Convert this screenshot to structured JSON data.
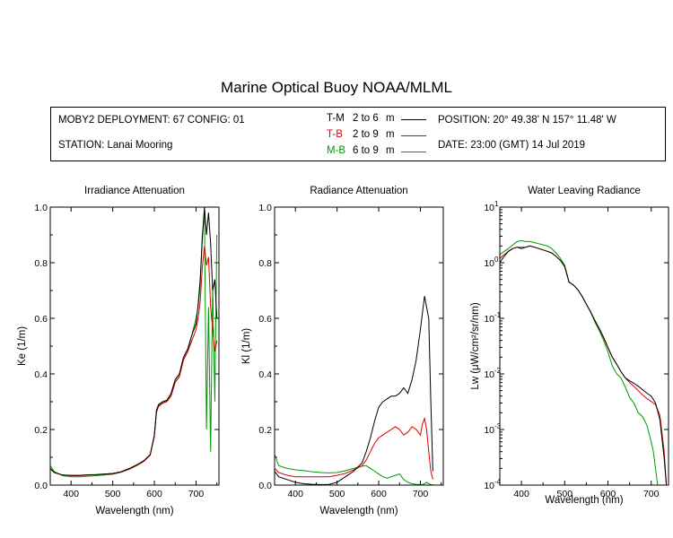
{
  "title": "Marine Optical Buoy NOAA/MLML",
  "info": {
    "deployment": "MOBY2 DEPLOYMENT: 67 CONFIG: 01",
    "station": "STATION: Lanai Mooring",
    "position": "POSITION: 20° 49.38' N   157° 11.48' W",
    "date": "DATE: 23:00 (GMT) 14 Jul 2019",
    "legend": [
      {
        "code": "T-M",
        "range": "2 to 6",
        "unit": "m",
        "color": "#000000"
      },
      {
        "code": "T-B",
        "range": "2 to 9",
        "unit": "m",
        "color": "#e00000"
      },
      {
        "code": "M-B",
        "range": "6 to 9",
        "unit": "m",
        "color": "#009a00"
      }
    ]
  },
  "colors": {
    "tm": "#000000",
    "tb": "#e00000",
    "mb": "#009a00"
  },
  "chart_data": [
    {
      "type": "line",
      "title": "Irradiance Attenuation",
      "xlabel": "Wavelength (nm)",
      "ylabel": "Ke  (1/m)",
      "xlim": [
        350,
        755
      ],
      "ylim": [
        0,
        1.0
      ],
      "xticks": [
        400,
        500,
        600,
        700
      ],
      "yticks": [
        "0.0",
        "0.2",
        "0.4",
        "0.6",
        "0.8",
        "1.0"
      ],
      "series": [
        {
          "key": "tm",
          "x": [
            350,
            360,
            380,
            400,
            420,
            440,
            460,
            480,
            500,
            520,
            540,
            560,
            575,
            590,
            600,
            605,
            610,
            620,
            630,
            640,
            650,
            660,
            670,
            680,
            690,
            700,
            705,
            710,
            715,
            720,
            725,
            730,
            735,
            740,
            745,
            750
          ],
          "y": [
            0.06,
            0.045,
            0.036,
            0.035,
            0.035,
            0.037,
            0.038,
            0.04,
            0.042,
            0.048,
            0.06,
            0.075,
            0.088,
            0.11,
            0.18,
            0.27,
            0.29,
            0.3,
            0.305,
            0.33,
            0.38,
            0.4,
            0.46,
            0.49,
            0.54,
            0.58,
            0.65,
            0.74,
            0.88,
            1.0,
            0.9,
            0.98,
            0.87,
            0.7,
            0.74,
            0.6
          ]
        },
        {
          "key": "tb",
          "x": [
            350,
            360,
            380,
            400,
            420,
            440,
            460,
            480,
            500,
            520,
            540,
            560,
            575,
            590,
            600,
            605,
            610,
            620,
            630,
            640,
            650,
            660,
            670,
            680,
            690,
            700,
            705,
            710,
            715,
            720,
            725,
            730,
            735,
            740,
            745,
            750
          ],
          "y": [
            0.058,
            0.045,
            0.036,
            0.034,
            0.034,
            0.036,
            0.037,
            0.039,
            0.041,
            0.047,
            0.058,
            0.073,
            0.086,
            0.108,
            0.175,
            0.262,
            0.283,
            0.295,
            0.3,
            0.32,
            0.37,
            0.39,
            0.45,
            0.48,
            0.52,
            0.56,
            0.6,
            0.66,
            0.78,
            0.86,
            0.79,
            0.82,
            0.64,
            0.56,
            0.48,
            0.52
          ]
        },
        {
          "key": "mb",
          "x": [
            350,
            360,
            380,
            400,
            420,
            440,
            460,
            480,
            500,
            520,
            540,
            560,
            575,
            590,
            600,
            605,
            610,
            620,
            630,
            640,
            650,
            660,
            670,
            680,
            690,
            700,
            705,
            710,
            715,
            720,
            725,
            730,
            735,
            740,
            745,
            750
          ],
          "y": [
            0.07,
            0.048,
            0.034,
            0.03,
            0.03,
            0.032,
            0.034,
            0.036,
            0.039,
            0.046,
            0.057,
            0.072,
            0.086,
            0.108,
            0.178,
            0.265,
            0.286,
            0.296,
            0.302,
            0.322,
            0.372,
            0.392,
            0.452,
            0.482,
            0.54,
            0.6,
            0.64,
            0.72,
            0.9,
            0.98,
            0.2,
            0.64,
            0.12,
            0.72,
            0.3,
            0.9
          ]
        }
      ]
    },
    {
      "type": "line",
      "title": "Radiance Attenuation",
      "xlabel": "Wavelength (nm)",
      "ylabel": "Kl  (1/m)",
      "xlim": [
        350,
        755
      ],
      "ylim": [
        0,
        1.0
      ],
      "xticks": [
        400,
        500,
        600,
        700
      ],
      "yticks": [
        "0.0",
        "0.2",
        "0.4",
        "0.6",
        "0.8",
        "1.0"
      ],
      "series": [
        {
          "key": "tm",
          "x": [
            350,
            360,
            380,
            400,
            420,
            440,
            460,
            480,
            500,
            520,
            540,
            560,
            570,
            580,
            590,
            600,
            610,
            620,
            630,
            640,
            650,
            660,
            670,
            680,
            690,
            700,
            705,
            710,
            715,
            720,
            725,
            730
          ],
          "y": [
            0.05,
            0.03,
            0.02,
            0.01,
            0.005,
            0.003,
            0.002,
            0.002,
            0.01,
            0.03,
            0.05,
            0.08,
            0.12,
            0.17,
            0.23,
            0.28,
            0.3,
            0.31,
            0.32,
            0.32,
            0.33,
            0.35,
            0.33,
            0.38,
            0.45,
            0.56,
            0.62,
            0.68,
            0.64,
            0.6,
            0.3,
            0.05
          ]
        },
        {
          "key": "tb",
          "x": [
            350,
            360,
            380,
            400,
            420,
            440,
            460,
            480,
            500,
            520,
            540,
            560,
            570,
            580,
            590,
            600,
            610,
            620,
            630,
            640,
            650,
            660,
            670,
            680,
            690,
            700,
            705,
            710,
            715,
            720,
            725,
            730
          ],
          "y": [
            0.06,
            0.045,
            0.035,
            0.03,
            0.03,
            0.03,
            0.03,
            0.03,
            0.035,
            0.042,
            0.055,
            0.07,
            0.09,
            0.12,
            0.15,
            0.17,
            0.18,
            0.19,
            0.2,
            0.21,
            0.2,
            0.18,
            0.19,
            0.21,
            0.2,
            0.18,
            0.22,
            0.24,
            0.2,
            0.12,
            0.05,
            0.02
          ]
        },
        {
          "key": "mb",
          "x": [
            350,
            360,
            380,
            400,
            420,
            440,
            460,
            480,
            500,
            520,
            540,
            560,
            570,
            580,
            590,
            600,
            610,
            620,
            630,
            640,
            650,
            660,
            670,
            680,
            690,
            700,
            705,
            710,
            715,
            720,
            725,
            730
          ],
          "y": [
            0.11,
            0.07,
            0.06,
            0.055,
            0.052,
            0.048,
            0.045,
            0.044,
            0.045,
            0.052,
            0.06,
            0.068,
            0.07,
            0.06,
            0.05,
            0.04,
            0.03,
            0.025,
            0.03,
            0.035,
            0.04,
            0.02,
            0.01,
            0.005,
            0.003,
            0.002,
            0.002,
            0.005,
            0.01,
            0.005,
            0.002,
            0.001
          ]
        }
      ]
    },
    {
      "type": "line",
      "title": "Water Leaving Radiance",
      "xlabel": "Wavelength (nm)",
      "ylabel": "Lw  (μW/cm²/sr/nm)",
      "xlim": [
        350,
        740
      ],
      "ylim": [
        0.0001,
        10
      ],
      "scale": "log",
      "xticks": [
        400,
        500,
        600,
        700
      ],
      "yticks": [
        0.0001,
        0.001,
        0.01,
        0.1,
        1,
        10
      ],
      "series": [
        {
          "key": "tm",
          "x": [
            350,
            360,
            370,
            380,
            390,
            400,
            410,
            420,
            430,
            440,
            450,
            460,
            470,
            480,
            490,
            500,
            510,
            520,
            530,
            540,
            550,
            560,
            570,
            580,
            590,
            600,
            610,
            620,
            630,
            640,
            650,
            660,
            670,
            680,
            690,
            700,
            710,
            720,
            730,
            735
          ],
          "y": [
            1.0,
            1.3,
            1.6,
            1.8,
            1.9,
            1.8,
            1.9,
            2.0,
            1.9,
            1.8,
            1.7,
            1.6,
            1.5,
            1.3,
            1.1,
            0.85,
            0.45,
            0.4,
            0.33,
            0.25,
            0.18,
            0.13,
            0.09,
            0.065,
            0.045,
            0.03,
            0.02,
            0.015,
            0.011,
            0.0085,
            0.0075,
            0.0068,
            0.006,
            0.0052,
            0.0045,
            0.004,
            0.003,
            0.0015,
            0.0003,
            0.0001
          ]
        },
        {
          "key": "tb",
          "x": [
            350,
            360,
            370,
            380,
            390,
            400,
            410,
            420,
            430,
            440,
            450,
            460,
            470,
            480,
            490,
            500,
            510,
            520,
            530,
            540,
            550,
            560,
            570,
            580,
            590,
            600,
            610,
            620,
            630,
            640,
            650,
            660,
            670,
            680,
            690,
            700,
            710,
            720,
            730,
            735
          ],
          "y": [
            1.2,
            1.4,
            1.6,
            1.8,
            1.9,
            1.9,
            1.9,
            2.0,
            1.9,
            1.8,
            1.7,
            1.6,
            1.5,
            1.3,
            1.1,
            0.85,
            0.45,
            0.4,
            0.33,
            0.25,
            0.18,
            0.13,
            0.09,
            0.065,
            0.045,
            0.03,
            0.02,
            0.015,
            0.011,
            0.0085,
            0.007,
            0.006,
            0.005,
            0.0042,
            0.0036,
            0.0032,
            0.0028,
            0.0018,
            0.0004,
            0.0001
          ]
        },
        {
          "key": "mb",
          "x": [
            350,
            360,
            370,
            380,
            390,
            400,
            410,
            420,
            430,
            440,
            450,
            460,
            470,
            480,
            490,
            500,
            510,
            520,
            530,
            540,
            550,
            560,
            570,
            580,
            590,
            600,
            610,
            620,
            630,
            640,
            650,
            660,
            670,
            680,
            690,
            700,
            705,
            710,
            715
          ],
          "y": [
            1.4,
            1.6,
            1.8,
            2.1,
            2.4,
            2.5,
            2.4,
            2.4,
            2.3,
            2.2,
            2.1,
            2.0,
            1.8,
            1.5,
            1.2,
            0.9,
            0.45,
            0.4,
            0.33,
            0.25,
            0.18,
            0.13,
            0.085,
            0.06,
            0.04,
            0.025,
            0.014,
            0.01,
            0.0085,
            0.0058,
            0.0038,
            0.003,
            0.002,
            0.0017,
            0.0012,
            0.0006,
            0.0004,
            0.0002,
            0.0001
          ]
        }
      ]
    }
  ]
}
